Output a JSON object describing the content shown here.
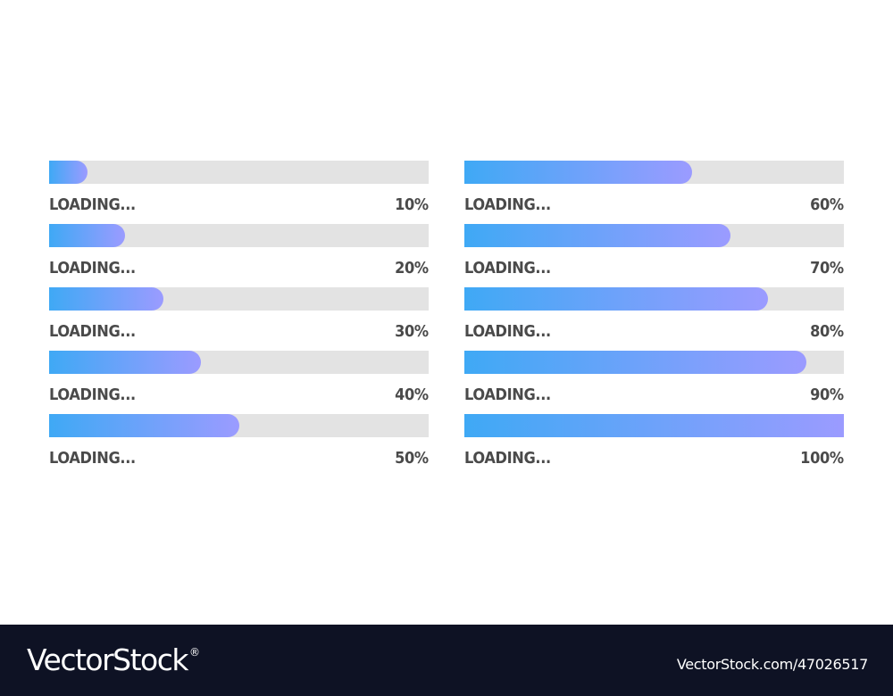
{
  "colors": {
    "track": "#e3e3e3",
    "fill_start": "#3fa9f5",
    "fill_end": "#9b9bff",
    "text": "#4a4a4a",
    "footer_bg": "#0e1224"
  },
  "bars": [
    {
      "label": "LOADING...",
      "percent_text": "10%",
      "progress": 0.1
    },
    {
      "label": "LOADING...",
      "percent_text": "20%",
      "progress": 0.2
    },
    {
      "label": "LOADING...",
      "percent_text": "30%",
      "progress": 0.3
    },
    {
      "label": "LOADING...",
      "percent_text": "40%",
      "progress": 0.4
    },
    {
      "label": "LOADING...",
      "percent_text": "50%",
      "progress": 0.5
    },
    {
      "label": "LOADING...",
      "percent_text": "60%",
      "progress": 0.6
    },
    {
      "label": "LOADING...",
      "percent_text": "70%",
      "progress": 0.7
    },
    {
      "label": "LOADING...",
      "percent_text": "80%",
      "progress": 0.8
    },
    {
      "label": "LOADING...",
      "percent_text": "90%",
      "progress": 0.9
    },
    {
      "label": "LOADING...",
      "percent_text": "100%",
      "progress": 1.0
    }
  ],
  "footer": {
    "brand": "VectorStock",
    "registered_mark": "®",
    "image_id": "VectorStock.com/47026517"
  }
}
